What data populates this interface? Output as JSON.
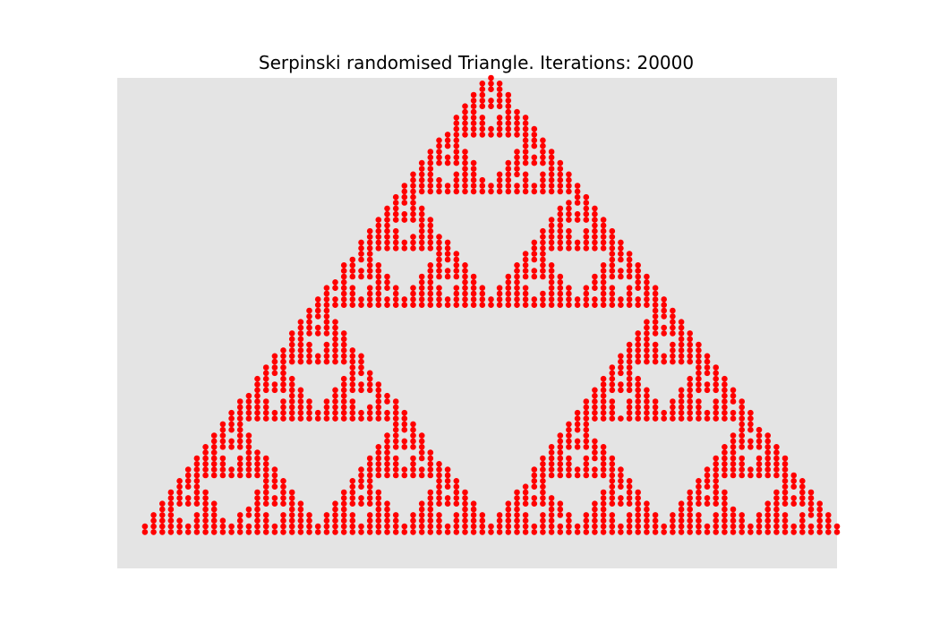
{
  "figure": {
    "title": "Serpinski randomised Triangle. Iterations: 20000",
    "plot_background": "#e4e4e4",
    "point_color": "#ff0000"
  },
  "chart_data": {
    "type": "scatter",
    "title": "Serpinski randomised Triangle. Iterations: 20000",
    "xlabel": "",
    "ylabel": "",
    "axes_visible": false,
    "grid": false,
    "legend": "none",
    "iterations": 20000,
    "triangle_vertices": [
      [
        0,
        0
      ],
      [
        1,
        0
      ],
      [
        0.5,
        1
      ]
    ],
    "xlim": [
      -0.04,
      1.0
    ],
    "ylim": [
      -0.08,
      1.0
    ],
    "grid_resolution": 0.0125,
    "series": [
      {
        "color": "#ff0000"
      }
    ]
  }
}
